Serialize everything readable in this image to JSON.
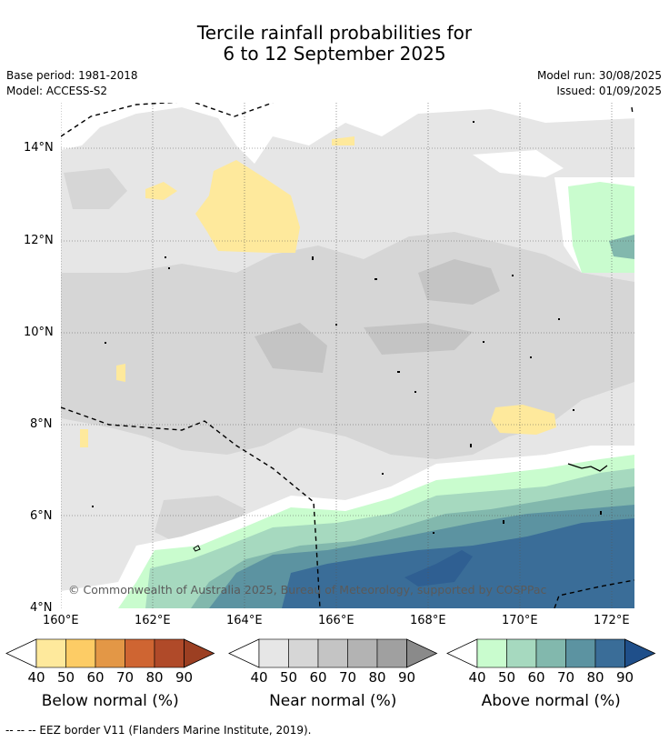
{
  "title_line1": "Tercile rainfall probabilities for",
  "title_line2": "6 to 12 September 2025",
  "base_period": "Base period: 1981-2018",
  "model": "Model: ACCESS-S2",
  "model_run": "Model run: 30/08/2025",
  "issued": "Issued: 01/09/2025",
  "copyright": "© Commonwealth of Australia 2025, Bureau of Meteorology, supported by COSPPac",
  "lat_ticks": [
    "14°N",
    "12°N",
    "10°N",
    "8°N",
    "6°N",
    "4°N"
  ],
  "lon_ticks": [
    "160°E",
    "162°E",
    "164°E",
    "166°E",
    "168°E",
    "170°E",
    "172°E"
  ],
  "colorbars": [
    {
      "label": "Below normal (%)",
      "ticks": [
        "40",
        "50",
        "60",
        "70",
        "80",
        "90"
      ],
      "colors": [
        "#fee99c",
        "#fdcc65",
        "#e39746",
        "#cf6532",
        "#b04a29",
        "#9c3f22"
      ],
      "under": "#ffffff"
    },
    {
      "label": "Near normal (%)",
      "ticks": [
        "40",
        "50",
        "60",
        "70",
        "80",
        "90"
      ],
      "colors": [
        "#e6e6e6",
        "#d6d6d6",
        "#c4c4c4",
        "#b3b3b3",
        "#a0a0a0",
        "#8a8a8a"
      ],
      "under": "#ffffff"
    },
    {
      "label": "Above normal (%)",
      "ticks": [
        "40",
        "50",
        "60",
        "70",
        "80",
        "90"
      ],
      "colors": [
        "#c9fcce",
        "#a6d9bf",
        "#82b8ad",
        "#5c93a1",
        "#3a6d98",
        "#1f4f8a"
      ],
      "under": "#ffffff"
    }
  ],
  "footnote": "-- -- -- EEZ border V11 (Flanders Marine Institute, 2019)."
}
